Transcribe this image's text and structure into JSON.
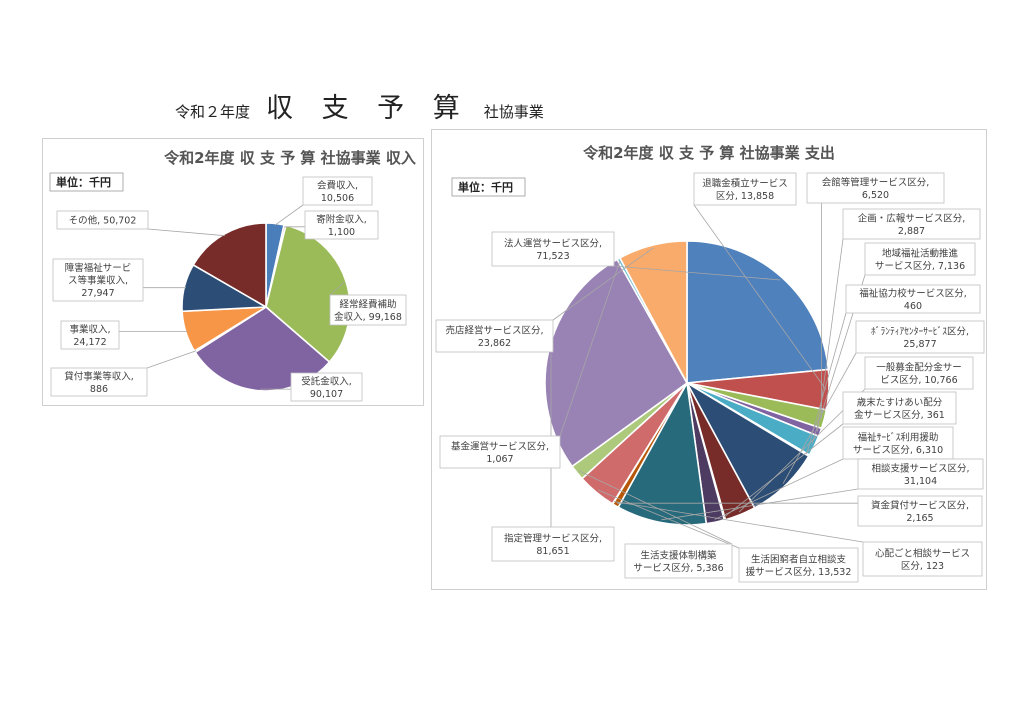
{
  "page": {
    "title_prefix": "令和２年度",
    "title_main": "収 支 予 算",
    "title_suffix": "社協事業"
  },
  "chart_data": [
    {
      "type": "pie",
      "title": "令和2年度 収 支 予 算 社協事業 収入",
      "unit_label": "単位：千円",
      "series": [
        {
          "name": "会費収入",
          "value": 10506,
          "label": [
            "会費収入,",
            "10,506"
          ],
          "color": "#4a7ebb"
        },
        {
          "name": "寄附金収入",
          "value": 1100,
          "label": [
            "寄附金収入,",
            "1,100"
          ],
          "color": "#c0504d"
        },
        {
          "name": "経常経費補助金収入",
          "value": 99168,
          "label": [
            "経常経費補助",
            "金収入, 99,168"
          ],
          "color": "#9bbb59"
        },
        {
          "name": "受託金収入",
          "value": 90107,
          "label": [
            "受託金収入,",
            "90,107"
          ],
          "color": "#8064a2"
        },
        {
          "name": "貸付事業等収入",
          "value": 886,
          "label": [
            "貸付事業等収入,",
            "886"
          ],
          "color": "#4bacc6"
        },
        {
          "name": "事業収入",
          "value": 24172,
          "label": [
            "事業収入,",
            "24,172"
          ],
          "color": "#f79646"
        },
        {
          "name": "障害福祉サービス等事業収入",
          "value": 27947,
          "label": [
            "障害福祉サービ",
            "ス等事業収入,",
            "27,947"
          ],
          "color": "#2c4d75"
        },
        {
          "name": "その他",
          "value": 50702,
          "label": [
            "その他, 50,702"
          ],
          "color": "#772c2a"
        }
      ]
    },
    {
      "type": "pie",
      "title": "令和2年度 収 支 予 算 社協事業 支出",
      "unit_label": "単位：千円",
      "series": [
        {
          "name": "法人運営サービス区分",
          "value": 71523,
          "label": [
            "法人運営サービス区分,",
            "71,523"
          ],
          "color": "#4f81bd"
        },
        {
          "name": "退職金積立サービス区分",
          "value": 13858,
          "label": [
            "退職金積立サービス",
            "区分, 13,858"
          ],
          "color": "#c0504d"
        },
        {
          "name": "会館等管理サービス区分",
          "value": 6520,
          "label": [
            "会館等管理サービス区分,",
            "6,520"
          ],
          "color": "#9bbb59"
        },
        {
          "name": "企画・広報サービス区分",
          "value": 2887,
          "label": [
            "企画・広報サービス区分,",
            "2,887"
          ],
          "color": "#8064a2"
        },
        {
          "name": "地域福祉活動推進サービス区分",
          "value": 7136,
          "label": [
            "地域福祉活動推進",
            "サービス区分, 7,136"
          ],
          "color": "#4bacc6"
        },
        {
          "name": "福祉協力校サービス区分",
          "value": 460,
          "label": [
            "福祉協力校サービス区分,",
            "460"
          ],
          "color": "#f79646"
        },
        {
          "name": "ﾎﾞﾗﾝﾃｨｱｾﾝﾀｰｻｰﾋﾞｽ区分",
          "value": 25877,
          "label": [
            "ﾎﾞﾗﾝﾃｨｱｾﾝﾀｰｻｰﾋﾞｽ区分,",
            "25,877"
          ],
          "color": "#2c4d75"
        },
        {
          "name": "一般募金配分金サービス区分",
          "value": 10766,
          "label": [
            "一般募金配分金サー",
            "ビス区分, 10,766"
          ],
          "color": "#772c2a"
        },
        {
          "name": "歳末たすけあい配分金サービス区分",
          "value": 361,
          "label": [
            "歳末たすけあい配分",
            "金サービス区分, 361"
          ],
          "color": "#5f7530"
        },
        {
          "name": "福祉ｻｰﾋﾞｽ利用援助サービス区分",
          "value": 6310,
          "label": [
            "福祉ｻｰﾋﾞｽ利用援助",
            "サービス区分, 6,310"
          ],
          "color": "#4d3b62"
        },
        {
          "name": "相談支援サービス区分",
          "value": 31104,
          "label": [
            "相談支援サービス区分,",
            "31,104"
          ],
          "color": "#276a7c"
        },
        {
          "name": "資金貸付サービス区分",
          "value": 2165,
          "label": [
            "資金貸付サービス区分,",
            "2,165"
          ],
          "color": "#b65708"
        },
        {
          "name": "心配ごと相談サービス区分",
          "value": 123,
          "label": [
            "心配ごと相談サービス",
            "区分, 123"
          ],
          "color": "#729aca"
        },
        {
          "name": "生活困窮者自立相談支援サービス区分",
          "value": 13532,
          "label": [
            "生活困窮者自立相談支",
            "援サービス区分, 13,532"
          ],
          "color": "#d06b6b"
        },
        {
          "name": "生活支援体制構築サービス区分",
          "value": 5386,
          "label": [
            "生活支援体制構築",
            "サービス区分, 5,386"
          ],
          "color": "#acc97c"
        },
        {
          "name": "指定管理サービス区分",
          "value": 81651,
          "label": [
            "指定管理サービス区分,",
            "81,651"
          ],
          "color": "#9983b5"
        },
        {
          "name": "基金運営サービス区分",
          "value": 1067,
          "label": [
            "基金運営サービス区分,",
            "1,067"
          ],
          "color": "#6fbdd2"
        },
        {
          "name": "売店経営サービス区分",
          "value": 23862,
          "label": [
            "売店経営サービス区分,",
            "23,862"
          ],
          "color": "#f9ab6b"
        }
      ]
    }
  ]
}
